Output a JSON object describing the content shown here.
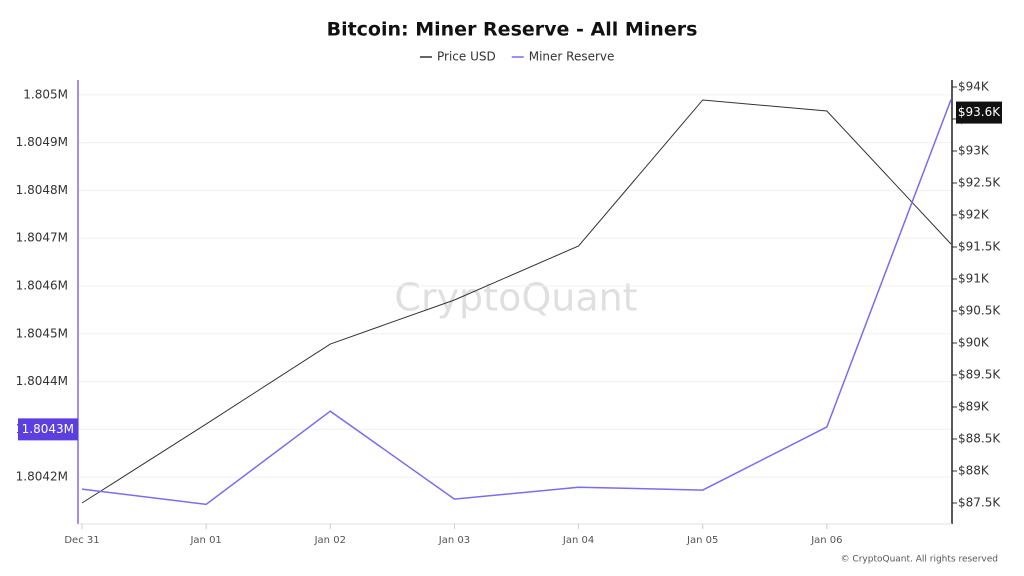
{
  "chart_data": {
    "type": "line",
    "title": "Bitcoin: Miner Reserve - All Miners",
    "categories": [
      "Dec 31",
      "Jan 01",
      "Jan 02",
      "Jan 03",
      "Jan 04",
      "Jan 05",
      "Jan 06",
      null
    ],
    "series": [
      {
        "name": "Price USD",
        "color": "#333333",
        "axis": "y2",
        "values": [
          87500,
          88734,
          89984,
          90672,
          91516,
          93797,
          93625,
          91547
        ]
      },
      {
        "name": "Miner Reserve",
        "color": "#7b6cf0",
        "axis": "y",
        "values": [
          1804175,
          1804143,
          1804338,
          1804154,
          1804179,
          1804173,
          1804305,
          1804990
        ]
      }
    ],
    "ylim": [
      1804102,
      1805031
    ],
    "yticks": [
      {
        "value": 1804200,
        "label": "1.8042M"
      },
      {
        "value": 1804300,
        "label": "1.8043M"
      },
      {
        "value": 1804400,
        "label": "1.8044M"
      },
      {
        "value": 1804500,
        "label": "1.8045M"
      },
      {
        "value": 1804600,
        "label": "1.8046M"
      },
      {
        "value": 1804700,
        "label": "1.8047M"
      },
      {
        "value": 1804800,
        "label": "1.8048M"
      },
      {
        "value": 1804900,
        "label": "1.8049M"
      },
      {
        "value": 1805000,
        "label": "1.805M"
      }
    ],
    "y2lim": [
      87172,
      94109
    ],
    "y2ticks": [
      {
        "value": 87500,
        "label": "$87.5K"
      },
      {
        "value": 88000,
        "label": "$88K"
      },
      {
        "value": 88500,
        "label": "$88.5K"
      },
      {
        "value": 89000,
        "label": "$89K"
      },
      {
        "value": 89500,
        "label": "$89.5K"
      },
      {
        "value": 90000,
        "label": "$90K"
      },
      {
        "value": 90500,
        "label": "$90.5K"
      },
      {
        "value": 91000,
        "label": "$91K"
      },
      {
        "value": 91500,
        "label": "$91.5K"
      },
      {
        "value": 92000,
        "label": "$92K"
      },
      {
        "value": 92500,
        "label": "$92.5K"
      },
      {
        "value": 93000,
        "label": "$93K"
      },
      {
        "value": 93500,
        "label": "$93.5K"
      },
      {
        "value": 94000,
        "label": "$94K"
      }
    ],
    "grid": true,
    "markers": [
      {
        "value": 1804300,
        "label": "1.8043M",
        "axis": "y"
      },
      {
        "value": 93600,
        "label": "$93.6K",
        "axis": "y2"
      }
    ],
    "watermark": "CryptoQuant",
    "copyright": "© CryptoQuant. All rights reserved"
  }
}
